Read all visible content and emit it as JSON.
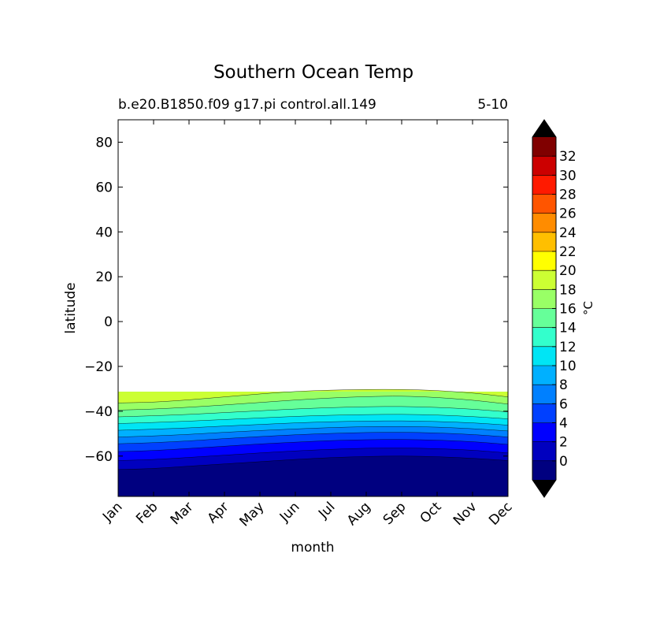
{
  "chart_data": {
    "type": "heatmap",
    "title": "Southern Ocean Temp",
    "subtitle_left": "b.e20.B1850.f09 g17.pi control.all.149",
    "subtitle_right": "5-10",
    "xlabel": "month",
    "ylabel": "latitude",
    "x_categories": [
      "Jan",
      "Feb",
      "Mar",
      "Apr",
      "May",
      "Jun",
      "Jul",
      "Aug",
      "Sep",
      "Oct",
      "Nov",
      "Dec"
    ],
    "y_ticks": [
      80,
      60,
      40,
      20,
      0,
      -20,
      -40,
      -60
    ],
    "ylim": [
      -78,
      90
    ],
    "data_lat_range": [
      -78,
      -32
    ],
    "colorbar": {
      "label": "°C",
      "levels": [
        -2,
        0,
        2,
        4,
        6,
        8,
        10,
        12,
        14,
        16,
        18,
        20,
        22,
        24,
        26,
        28,
        30,
        32,
        34
      ],
      "tick_labels": [
        "0",
        "2",
        "4",
        "6",
        "8",
        "10",
        "12",
        "14",
        "16",
        "18",
        "20",
        "22",
        "24",
        "26",
        "28",
        "30",
        "32"
      ],
      "colors": [
        "#000080",
        "#0000bf",
        "#0000ff",
        "#0040ff",
        "#0080ff",
        "#00b0ff",
        "#00e5f5",
        "#33ffcc",
        "#66ff99",
        "#99ff66",
        "#ccff33",
        "#ffff00",
        "#ffbf00",
        "#ff8c00",
        "#ff5500",
        "#ff1a00",
        "#cc0000",
        "#800000"
      ],
      "under_color": "#000000",
      "over_color": "#000000"
    },
    "isotherm_latitudes": [
      {
        "level": 0,
        "lat": [
          -66,
          -65.5,
          -64.5,
          -63.5,
          -62.5,
          -61.5,
          -60.7,
          -60.2,
          -60,
          -60.3,
          -61,
          -62
        ]
      },
      {
        "level": 2,
        "lat": [
          -62,
          -61.5,
          -60.6,
          -59.6,
          -58.6,
          -57.7,
          -57,
          -56.5,
          -56.4,
          -56.7,
          -57.4,
          -58.6
        ]
      },
      {
        "level": 4,
        "lat": [
          -58,
          -57.5,
          -56.6,
          -55.6,
          -54.6,
          -53.8,
          -53.1,
          -52.7,
          -52.6,
          -52.9,
          -53.6,
          -54.8
        ]
      },
      {
        "level": 6,
        "lat": [
          -54.5,
          -54,
          -53.2,
          -52.2,
          -51.3,
          -50.5,
          -49.9,
          -49.5,
          -49.4,
          -49.7,
          -50.4,
          -51.5
        ]
      },
      {
        "level": 8,
        "lat": [
          -51.5,
          -51,
          -50.3,
          -49.4,
          -48.6,
          -47.9,
          -47.3,
          -46.9,
          -46.8,
          -47.1,
          -47.8,
          -48.8
        ]
      },
      {
        "level": 10,
        "lat": [
          -48.5,
          -48,
          -47.4,
          -46.6,
          -45.9,
          -45.2,
          -44.7,
          -44.4,
          -44.3,
          -44.6,
          -45.2,
          -46.2
        ]
      },
      {
        "level": 12,
        "lat": [
          -45.5,
          -45,
          -44.4,
          -43.7,
          -43,
          -42.3,
          -41.8,
          -41.5,
          -41.4,
          -41.7,
          -42.4,
          -43.4
        ]
      },
      {
        "level": 14,
        "lat": [
          -42.5,
          -42,
          -41.4,
          -40.6,
          -39.8,
          -39,
          -38.4,
          -38,
          -37.9,
          -38.3,
          -39.1,
          -40.3
        ]
      },
      {
        "level": 16,
        "lat": [
          -39.5,
          -39,
          -38.2,
          -37.2,
          -36.1,
          -35,
          -34.1,
          -33.5,
          -33.3,
          -33.9,
          -35.1,
          -36.8
        ]
      },
      {
        "level": 18,
        "lat": [
          -36.3,
          -35.9,
          -34.9,
          -33.6,
          -32.3,
          -31.2,
          -30.6,
          -30.3,
          -30.3,
          -30.8,
          -31.9,
          -33.6
        ]
      }
    ]
  }
}
